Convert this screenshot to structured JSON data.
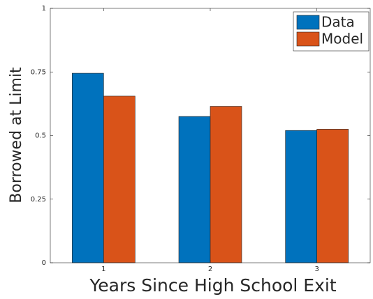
{
  "chart_data": {
    "type": "bar",
    "x_label": "Years Since High School Exit",
    "y_label": "Borrowed at Limit",
    "categories": [
      "1",
      "2",
      "3"
    ],
    "series": [
      {
        "name": "Data",
        "color": "#0072bd",
        "values": [
          0.745,
          0.575,
          0.52
        ]
      },
      {
        "name": "Model",
        "color": "#d95319",
        "values": [
          0.655,
          0.615,
          0.525
        ]
      }
    ],
    "ylim": [
      0,
      1
    ],
    "yticks": [
      0,
      0.25,
      0.5,
      0.75,
      1
    ],
    "grid": false,
    "legend": "top-right"
  }
}
